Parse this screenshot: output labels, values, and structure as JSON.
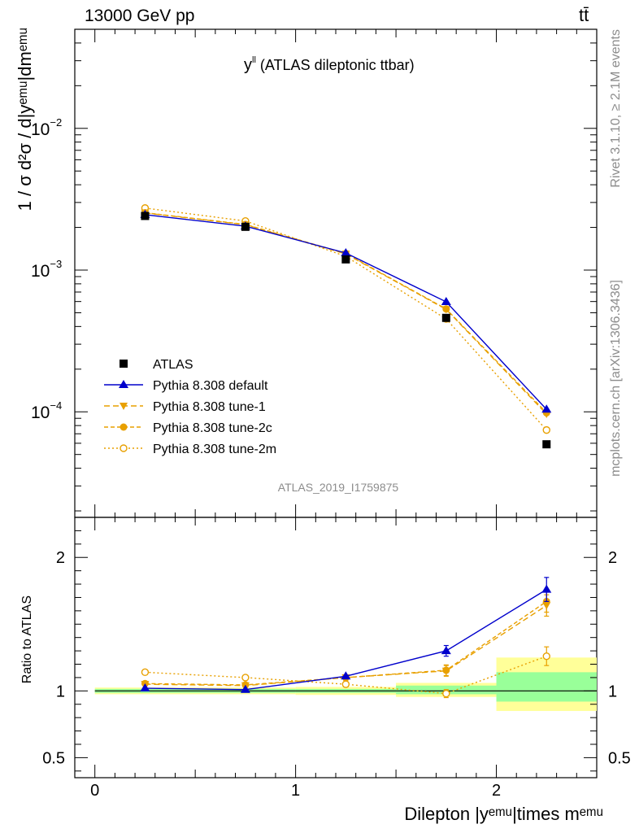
{
  "header": {
    "energy_label": "13000 GeV pp",
    "process_label": "tt̄"
  },
  "side": {
    "rivet": "Rivet 3.1.10, ≥ 2.1M events",
    "mcplots": "mcplots.cern.ch [arXiv:1306.3436]"
  },
  "main_title": {
    "main": "y",
    "sup": "ll",
    "rest": " (ATLAS dileptonic ttbar)"
  },
  "analysis_id": "ATLAS_2019_I1759875",
  "ylabel_main": "1 / σ d²σ / d|yᵉᵐᵘ|dmᵉᵐᵘ",
  "ylabel_ratio": "Ratio to ATLAS",
  "xlabel": "Dilepton |yᵉᵐᵘ|times mᵉᵐᵘ",
  "colors": {
    "atlas": "#000000",
    "default": "#0000cc",
    "tune": "#e8a000",
    "band_inner": "#99ff99",
    "band_outer": "#ffff99"
  },
  "chart_data": [
    {
      "type": "line",
      "scale": "log",
      "xlim": [
        -0.1,
        2.5
      ],
      "ylim": [
        1.8e-05,
        0.05
      ],
      "x_ticks": [
        0,
        1,
        2
      ],
      "y_tick_labels": [
        {
          "value": 0.01,
          "base": "10",
          "exp": "−2"
        },
        {
          "value": 0.001,
          "base": "10",
          "exp": "−3"
        },
        {
          "value": 0.0001,
          "base": "10",
          "exp": "−4"
        }
      ],
      "x": [
        0.25,
        0.75,
        1.25,
        1.75,
        2.25
      ],
      "series": [
        {
          "name": "ATLAS",
          "style": "data",
          "values": [
            0.00241,
            0.00202,
            0.00119,
            0.00046,
            5.9e-05
          ]
        },
        {
          "name": "Pythia 8.308 default",
          "style": "default",
          "values": [
            0.00246,
            0.00204,
            0.00132,
            0.000597,
            0.000104
          ]
        },
        {
          "name": "Pythia 8.308 tune-1",
          "style": "tune1",
          "values": [
            0.00253,
            0.00209,
            0.0013,
            0.000528,
            9.65e-05
          ]
        },
        {
          "name": "Pythia 8.308 tune-2c",
          "style": "tune2c",
          "values": [
            0.00254,
            0.0021,
            0.00131,
            0.000532,
            9.85e-05
          ]
        },
        {
          "name": "Pythia 8.308 tune-2m",
          "style": "tune2m",
          "values": [
            0.00274,
            0.00222,
            0.00125,
            0.000452,
            7.44e-05
          ]
        }
      ]
    },
    {
      "type": "line",
      "xlim": [
        -0.1,
        2.5
      ],
      "ylim": [
        0.35,
        2.3
      ],
      "y_ticks": [
        {
          "value": 0.5,
          "label": "0.5"
        },
        {
          "value": 1,
          "label": "1"
        },
        {
          "value": 2,
          "label": "2"
        }
      ],
      "x": [
        0.25,
        0.75,
        1.25,
        1.75,
        2.25
      ],
      "bands": [
        {
          "x0": 0,
          "x1": 1,
          "inner": [
            0.985,
            1.015
          ],
          "outer": [
            0.975,
            1.025
          ]
        },
        {
          "x0": 1,
          "x1": 1.5,
          "inner": [
            0.985,
            1.015
          ],
          "outer": [
            0.97,
            1.03
          ]
        },
        {
          "x0": 1.5,
          "x1": 2,
          "inner": [
            0.975,
            1.04
          ],
          "outer": [
            0.955,
            1.06
          ]
        },
        {
          "x0": 2,
          "x1": 2.5,
          "inner": [
            0.92,
            1.14
          ],
          "outer": [
            0.85,
            1.25
          ]
        }
      ],
      "series": [
        {
          "name": "Pythia 8.308 default",
          "style": "default",
          "values": [
            1.02,
            1.01,
            1.11,
            1.3,
            1.76
          ],
          "err": [
            0,
            0,
            0,
            0.04,
            0.09
          ]
        },
        {
          "name": "Pythia 8.308 tune-1",
          "style": "tune1",
          "values": [
            1.05,
            1.04,
            1.1,
            1.15,
            1.64
          ],
          "err": [
            0,
            0,
            0.02,
            0.04,
            0.08
          ]
        },
        {
          "name": "Pythia 8.308 tune-2c",
          "style": "tune2c",
          "values": [
            1.055,
            1.045,
            1.1,
            1.155,
            1.67
          ],
          "err": [
            0,
            0,
            0.02,
            0.04,
            0.08
          ]
        },
        {
          "name": "Pythia 8.308 tune-2m",
          "style": "tune2m",
          "values": [
            1.14,
            1.1,
            1.05,
            0.98,
            1.26
          ],
          "err": [
            0,
            0,
            0.02,
            0.03,
            0.07
          ]
        }
      ]
    }
  ]
}
